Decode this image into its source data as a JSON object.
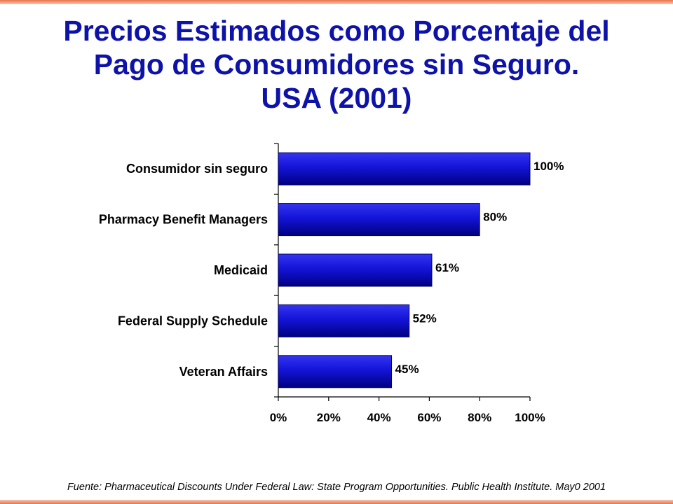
{
  "title_lines": [
    "Precios Estimados como Porcentaje del",
    "Pago de Consumidores sin Seguro.",
    "USA (2001)"
  ],
  "source": "Fuente: Pharmaceutical Discounts Under Federal Law: State Program Opportunities. Public Health Institute. May0 2001",
  "colors": {
    "title": "#0d12a8",
    "bar": "#1414d8",
    "bar_dark": "#000080",
    "accent_rule": "#e8734a"
  },
  "chart_data": {
    "type": "bar",
    "orientation": "horizontal",
    "categories": [
      "Consumidor sin seguro",
      "Pharmacy Benefit Managers",
      "Medicaid",
      "Federal Supply Schedule",
      "Veteran Affairs"
    ],
    "values": [
      100,
      80,
      61,
      52,
      45
    ],
    "data_labels": [
      "100%",
      "80%",
      "61%",
      "52%",
      "45%"
    ],
    "xlim": [
      0,
      100
    ],
    "x_ticks": [
      0,
      20,
      40,
      60,
      80,
      100
    ],
    "x_tick_labels": [
      "0%",
      "20%",
      "40%",
      "60%",
      "80%",
      "100%"
    ],
    "grid": false,
    "legend": "none"
  }
}
